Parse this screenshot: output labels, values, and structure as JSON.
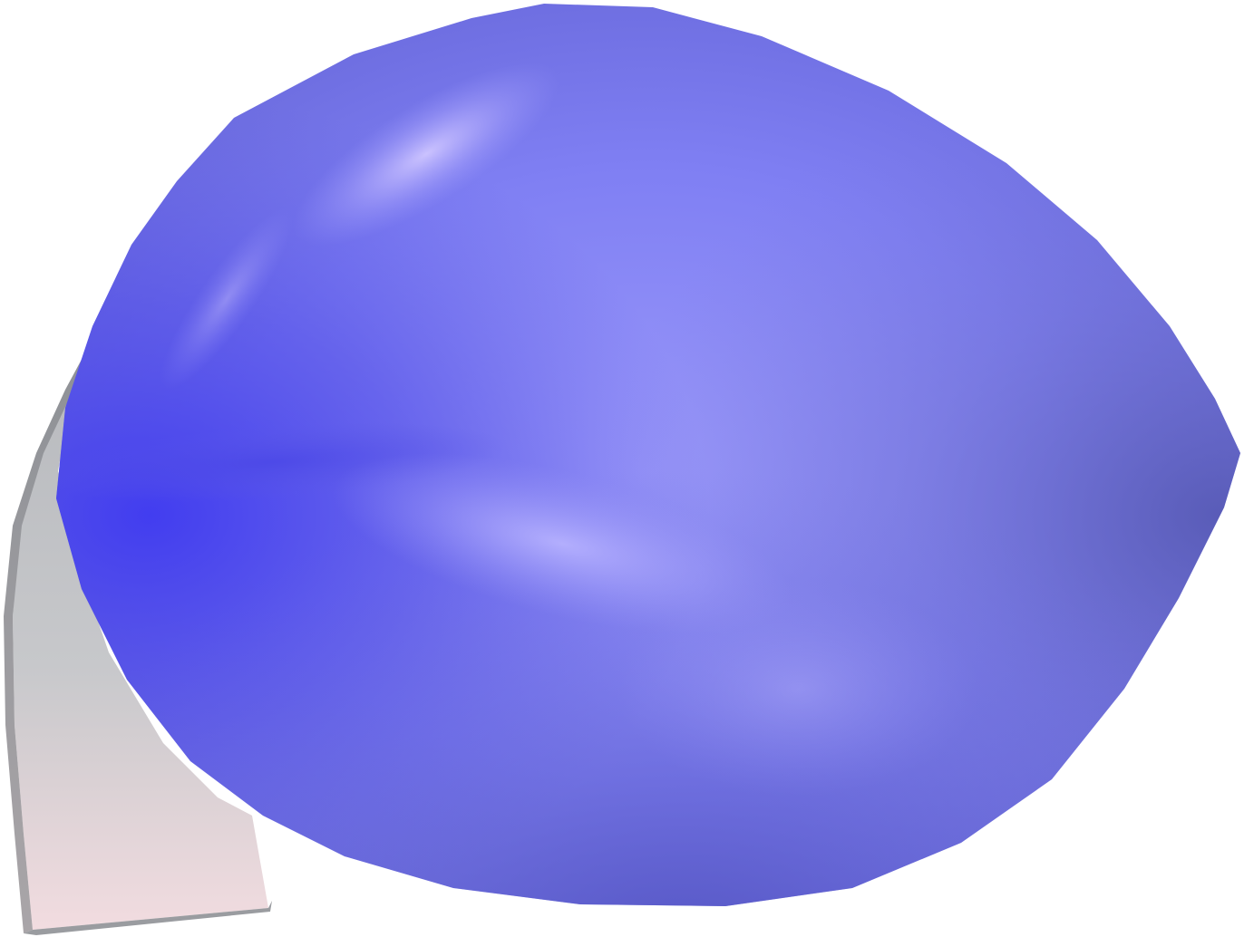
{
  "scene": {
    "description_free": true,
    "colors": {
      "background": "#ffffff",
      "body_light": "#c4bcff",
      "body_mid": "#8480f6",
      "body_base": "#7b7cf0",
      "body_dark_edge": "#5251d8",
      "body_deep": "#3c36e8",
      "body_rim": "#5a5cb4",
      "fin_top": "#b7b9bd",
      "fin_mid": "#c7c8cb",
      "fin_bottom": "#f2dce0",
      "fin_edge": "#8e9196"
    }
  }
}
